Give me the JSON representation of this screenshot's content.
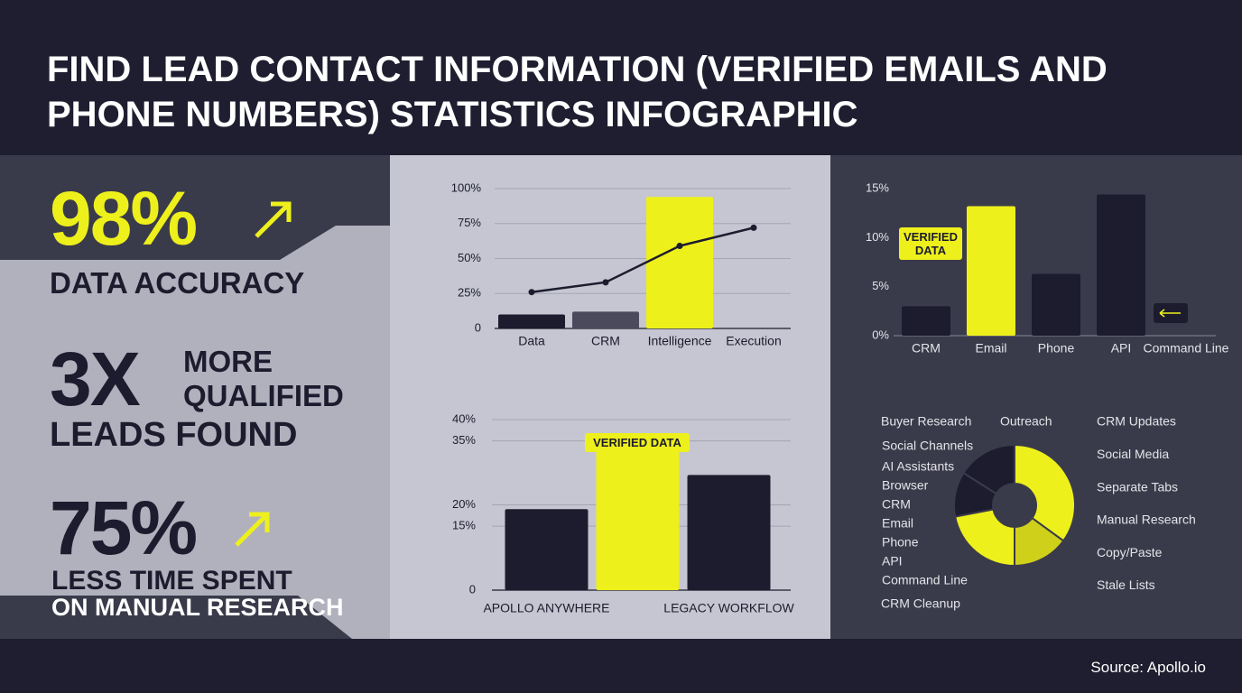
{
  "header": {
    "title": "FIND LEAD CONTACT INFORMATION (VERIFIED EMAILS AND PHONE NUMBERS) STATISTICS INFOGRAPHIC"
  },
  "stats": [
    {
      "value": "98%",
      "label": "DATA ACCURACY"
    },
    {
      "value": "3X",
      "label": "MORE QUALIFIED",
      "label2": "LEADS FOUND"
    },
    {
      "value": "75%",
      "label": "LESS TIME SPENT",
      "label2": "ON MANUAL RESEARCH"
    }
  ],
  "chart_data": [
    {
      "type": "combo",
      "categories": [
        "Data",
        "CRM",
        "Intelligence",
        "Execution"
      ],
      "series": [
        {
          "type": "bar",
          "values": [
            10,
            12,
            94,
            null
          ],
          "colors": [
            "#1c1c2e",
            "#4a4a5c",
            "#eef01c",
            "#1c1c2e"
          ]
        },
        {
          "type": "line",
          "color": "#1c1c2e",
          "values": [
            26,
            33,
            59,
            72
          ]
        }
      ],
      "ylim": [
        0,
        100
      ],
      "yticks": [
        0,
        {
          "value": 25,
          "label": "25%"
        },
        {
          "value": 50,
          "label": "50%"
        },
        {
          "value": 75,
          "label": "75%"
        },
        {
          "value": 100,
          "label": "100%"
        }
      ],
      "grid": true
    },
    {
      "type": "bar",
      "categories": [
        "CRM",
        "Email",
        "Phone",
        "API",
        "Command Line"
      ],
      "values": [
        3,
        13.2,
        6.3,
        14.4,
        null
      ],
      "colors": [
        "#1c1c2e",
        "#eef01c",
        "#1c1c2e",
        "#1c1c2e",
        "#1c1c2e"
      ],
      "annotation": "VERIFIED DATA",
      "ylim": [
        0,
        15
      ],
      "yticks": [
        {
          "value": 0,
          "label": "0%"
        },
        {
          "value": 5,
          "label": "5%"
        },
        {
          "value": 10,
          "label": "10%"
        },
        {
          "value": 15,
          "label": "15%"
        }
      ],
      "grid": false
    },
    {
      "type": "bar",
      "categories": [
        "APOLLO ANYWHERE",
        null,
        "LEGACY WORKFLOW"
      ],
      "values": [
        19,
        35.5,
        27
      ],
      "colors": [
        "#1c1c2e",
        "#eef01c",
        "#1c1c2e"
      ],
      "annotation": "VERIFIED DATA",
      "ylim": [
        0,
        40
      ],
      "yticks": [
        0,
        {
          "value": 15,
          "label": "15%"
        },
        {
          "value": 20,
          "label": "20%"
        },
        {
          "value": 35,
          "label": "35%"
        },
        {
          "value": 40,
          "label": "40%"
        }
      ],
      "grid": true
    },
    {
      "type": "pie",
      "values": [
        35,
        15,
        22,
        12,
        16
      ],
      "colors": [
        "#eef01c",
        "#cfd01a",
        "#eef01c",
        "#1c1c2e",
        "#1c1c2e"
      ],
      "labels_left": [
        "Buyer Research",
        "Social Channels",
        "AI Assistants",
        "Browser",
        "CRM",
        "Email",
        "Phone",
        "API",
        "Command Line",
        "CRM Cleanup"
      ],
      "label_top": "Outreach",
      "labels_right": [
        "CRM Updates",
        "Social Media",
        "Separate Tabs",
        "Manual Research",
        "Copy/Paste",
        "Stale Lists"
      ]
    }
  ],
  "source": "Source: Apollo.io"
}
